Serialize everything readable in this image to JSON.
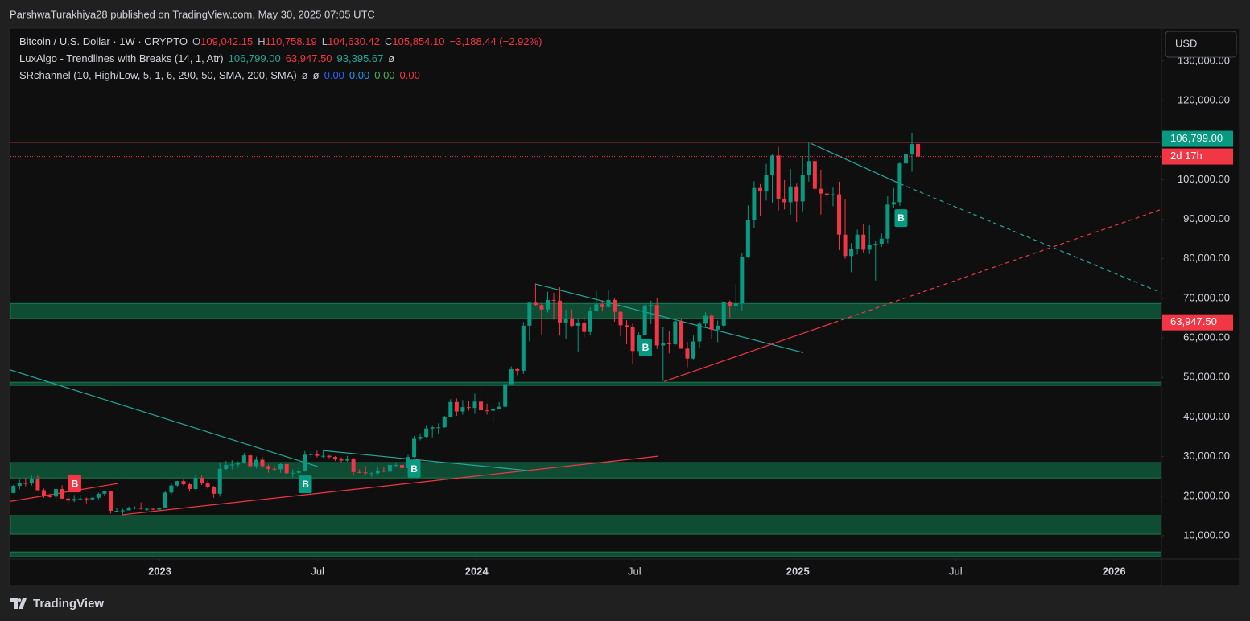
{
  "header": {
    "published": "ParshwaTurakhiya28 published on TradingView.com, May 30, 2025 07:05 UTC",
    "legend": [
      [
        {
          "text": "Bitcoin / U.S. Dollar · 1W · CRYPTO",
          "color": "#d1d4dc"
        },
        {
          "text": "O",
          "color": "#b2b5be"
        },
        {
          "text": "109,042.15",
          "color": "#f23645"
        },
        {
          "text": "H",
          "color": "#b2b5be"
        },
        {
          "text": "110,758.19",
          "color": "#f23645"
        },
        {
          "text": "L",
          "color": "#b2b5be"
        },
        {
          "text": "104,630.42",
          "color": "#f23645"
        },
        {
          "text": "C",
          "color": "#b2b5be"
        },
        {
          "text": "105,854.10",
          "color": "#f23645"
        },
        {
          "text": "−3,188.44 (−2.92%)",
          "color": "#f23645"
        }
      ],
      [
        {
          "text": "LuxAlgo - Trendlines with Breaks (14, 1, Atr)",
          "color": "#d1d4dc"
        },
        {
          "text": "106,799.00",
          "color": "#26a69a"
        },
        {
          "text": "63,947.50",
          "color": "#f23645"
        },
        {
          "text": "93,395.67",
          "color": "#26a69a"
        },
        {
          "text": "ø",
          "color": "#d1d4dc"
        }
      ],
      [
        {
          "text": "SRchannel (10, High/Low, 5, 1, 6, 290, 50, SMA, 200, SMA)",
          "color": "#d1d4dc"
        },
        {
          "text": "ø",
          "color": "#d1d4dc"
        },
        {
          "text": "ø",
          "color": "#d1d4dc"
        },
        {
          "text": "0.00",
          "color": "#2962ff"
        },
        {
          "text": "0.00",
          "color": "#2196f3"
        },
        {
          "text": "0.00",
          "color": "#4caf50"
        },
        {
          "text": "0.00",
          "color": "#f23645"
        }
      ]
    ],
    "currency": "USD",
    "brand": "TradingView"
  },
  "chart_data": {
    "type": "candlestick",
    "up_color": "#089981",
    "down_color": "#f23645",
    "xlim": [
      -0.5,
      189.1
    ],
    "xticks": [
      {
        "value": 24.1,
        "label": "2023"
      },
      {
        "value": 50.1,
        "label": "Jul"
      },
      {
        "value": 76.3,
        "label": "2024"
      },
      {
        "value": 102.3,
        "label": "Jul"
      },
      {
        "value": 129.2,
        "label": "2025"
      },
      {
        "value": 155.2,
        "label": "Jul"
      },
      {
        "value": 181.3,
        "label": "2026"
      }
    ],
    "ylim": [
      -2400,
      138300
    ],
    "yticks": [
      {
        "value": 10000,
        "label": "10,000.00"
      },
      {
        "value": 20000,
        "label": "20,000.00"
      },
      {
        "value": 30000,
        "label": "30,000.00"
      },
      {
        "value": 40000,
        "label": "40,000.00"
      },
      {
        "value": 50000,
        "label": "50,000.00"
      },
      {
        "value": 60000,
        "label": "60,000.00"
      },
      {
        "value": 70000,
        "label": "70,000.00"
      },
      {
        "value": 80000,
        "label": "80,000.00"
      },
      {
        "value": 90000,
        "label": "90,000.00"
      },
      {
        "value": 100000,
        "label": "100,000.00"
      },
      {
        "value": 120000,
        "label": "120,000.00"
      },
      {
        "value": 130000,
        "label": "130,000.00"
      }
    ],
    "grid": false,
    "candles": [
      [
        20800,
        22900,
        20700,
        22600
      ],
      [
        22600,
        24200,
        21700,
        23300
      ],
      [
        23300,
        24600,
        22500,
        23200
      ],
      [
        23200,
        25200,
        22700,
        24400
      ],
      [
        24400,
        25200,
        21300,
        21500
      ],
      [
        21500,
        21900,
        19600,
        20000
      ],
      [
        20000,
        20600,
        19600,
        19900
      ],
      [
        19900,
        22300,
        18500,
        21800
      ],
      [
        21800,
        22700,
        19300,
        19400
      ],
      [
        19400,
        19900,
        18200,
        18900
      ],
      [
        18900,
        20300,
        18500,
        19300
      ],
      [
        19300,
        20400,
        18900,
        19400
      ],
      [
        19400,
        19700,
        18200,
        19200
      ],
      [
        19200,
        19700,
        18900,
        19600
      ],
      [
        19600,
        20900,
        19200,
        20600
      ],
      [
        20600,
        21400,
        20100,
        21300
      ],
      [
        21300,
        21400,
        15600,
        16300
      ],
      [
        16300,
        17100,
        16200,
        16300
      ],
      [
        16300,
        16800,
        15500,
        16400
      ],
      [
        16400,
        17400,
        16400,
        17100
      ],
      [
        17100,
        17400,
        16700,
        17100
      ],
      [
        17100,
        18400,
        16600,
        16800
      ],
      [
        16800,
        17000,
        16300,
        16800
      ],
      [
        16800,
        16900,
        16400,
        16600
      ],
      [
        16600,
        17200,
        16500,
        17100
      ],
      [
        17100,
        21300,
        17100,
        20900
      ],
      [
        20900,
        23300,
        20400,
        22700
      ],
      [
        22700,
        23900,
        22300,
        23800
      ],
      [
        23800,
        24200,
        22700,
        23000
      ],
      [
        23000,
        23400,
        21400,
        21800
      ],
      [
        21800,
        25200,
        21500,
        24600
      ],
      [
        24600,
        25200,
        22800,
        23200
      ],
      [
        23200,
        23900,
        21900,
        22200
      ],
      [
        22200,
        22600,
        19600,
        20600
      ],
      [
        20600,
        28400,
        19900,
        26900
      ],
      [
        26900,
        28900,
        26600,
        27900
      ],
      [
        27900,
        29100,
        26800,
        28000
      ],
      [
        28000,
        28800,
        27200,
        28300
      ],
      [
        28300,
        30900,
        28200,
        30300
      ],
      [
        30300,
        30500,
        27100,
        27600
      ],
      [
        27600,
        30000,
        27000,
        29200
      ],
      [
        29200,
        29900,
        27000,
        27600
      ],
      [
        27600,
        28000,
        25900,
        26900
      ],
      [
        26900,
        27600,
        26500,
        26800
      ],
      [
        26800,
        28400,
        25900,
        28100
      ],
      [
        28100,
        28400,
        25400,
        25800
      ],
      [
        25800,
        26800,
        24800,
        25900
      ],
      [
        25900,
        27000,
        24900,
        26300
      ],
      [
        26300,
        31400,
        26200,
        30500
      ],
      [
        30500,
        31300,
        29600,
        30600
      ],
      [
        30600,
        31500,
        29800,
        30200
      ],
      [
        30200,
        31800,
        29700,
        30200
      ],
      [
        30200,
        30400,
        29600,
        29900
      ],
      [
        29900,
        30100,
        28900,
        29300
      ],
      [
        29300,
        29800,
        28600,
        29000
      ],
      [
        29000,
        30200,
        28700,
        29400
      ],
      [
        29400,
        29700,
        25200,
        26100
      ],
      [
        26100,
        26800,
        25800,
        26000
      ],
      [
        26000,
        27600,
        25400,
        25800
      ],
      [
        25800,
        26100,
        24900,
        25800
      ],
      [
        25800,
        27400,
        25200,
        26500
      ],
      [
        26500,
        27300,
        26000,
        26200
      ],
      [
        26200,
        28500,
        26000,
        27900
      ],
      [
        27900,
        28600,
        27200,
        27900
      ],
      [
        27900,
        28000,
        26600,
        27100
      ],
      [
        27100,
        30400,
        26800,
        29900
      ],
      [
        29900,
        35200,
        29700,
        34500
      ],
      [
        34500,
        35900,
        34100,
        35000
      ],
      [
        35000,
        38000,
        34800,
        37100
      ],
      [
        37100,
        37900,
        34900,
        37400
      ],
      [
        37400,
        38400,
        35600,
        37400
      ],
      [
        37400,
        40300,
        37300,
        39900
      ],
      [
        39900,
        44500,
        39900,
        43800
      ],
      [
        43800,
        44700,
        40300,
        41400
      ],
      [
        41400,
        44300,
        40600,
        42500
      ],
      [
        42500,
        44000,
        41600,
        42300
      ],
      [
        42300,
        45900,
        40800,
        43900
      ],
      [
        43900,
        49100,
        41600,
        41700
      ],
      [
        41700,
        43400,
        40600,
        41600
      ],
      [
        41600,
        42800,
        38500,
        42000
      ],
      [
        42000,
        43800,
        41900,
        42600
      ],
      [
        42600,
        48600,
        42300,
        48300
      ],
      [
        48300,
        52800,
        48300,
        52100
      ],
      [
        52100,
        52500,
        50600,
        51700
      ],
      [
        51700,
        64000,
        50900,
        63100
      ],
      [
        63100,
        69100,
        59100,
        68900
      ],
      [
        68900,
        73800,
        68000,
        68300
      ],
      [
        68300,
        68900,
        60800,
        67200
      ],
      [
        67200,
        71700,
        66400,
        69600
      ],
      [
        69600,
        71400,
        64600,
        69400
      ],
      [
        69400,
        72800,
        60600,
        63900
      ],
      [
        63900,
        67200,
        59800,
        64900
      ],
      [
        64900,
        67200,
        62800,
        63100
      ],
      [
        63100,
        64700,
        56600,
        63900
      ],
      [
        63900,
        65500,
        60200,
        61500
      ],
      [
        61500,
        67700,
        60700,
        66900
      ],
      [
        66900,
        71900,
        66600,
        68500
      ],
      [
        68500,
        69500,
        66700,
        67800
      ],
      [
        67800,
        72000,
        67600,
        69600
      ],
      [
        69600,
        70200,
        64100,
        66600
      ],
      [
        66600,
        66800,
        60400,
        63200
      ],
      [
        63200,
        64500,
        58400,
        62700
      ],
      [
        62700,
        63800,
        53500,
        56700
      ],
      [
        56700,
        61400,
        56600,
        60800
      ],
      [
        60800,
        68400,
        60700,
        68200
      ],
      [
        68200,
        69400,
        63500,
        68300
      ],
      [
        68300,
        70000,
        57200,
        58100
      ],
      [
        58100,
        62700,
        49100,
        58700
      ],
      [
        58700,
        61800,
        56100,
        58400
      ],
      [
        58400,
        65000,
        58000,
        64200
      ],
      [
        64200,
        64900,
        57200,
        57300
      ],
      [
        57300,
        59000,
        52600,
        54800
      ],
      [
        54800,
        60600,
        54600,
        59100
      ],
      [
        59100,
        64100,
        57500,
        63600
      ],
      [
        63600,
        66500,
        62700,
        65600
      ],
      [
        65600,
        66100,
        59800,
        62100
      ],
      [
        62100,
        64400,
        58900,
        63100
      ],
      [
        63100,
        69400,
        62400,
        69000
      ],
      [
        69000,
        69500,
        65100,
        68000
      ],
      [
        68000,
        73600,
        66800,
        68700
      ],
      [
        68700,
        81500,
        66800,
        80400
      ],
      [
        80400,
        93500,
        80200,
        89800
      ],
      [
        89800,
        99600,
        87800,
        97900
      ],
      [
        97900,
        98900,
        90800,
        97000
      ],
      [
        97000,
        104000,
        94700,
        101200
      ],
      [
        101200,
        106500,
        94200,
        106100
      ],
      [
        106100,
        108300,
        92200,
        95200
      ],
      [
        95200,
        99900,
        92500,
        94300
      ],
      [
        94300,
        102700,
        91200,
        98300
      ],
      [
        98300,
        99000,
        89300,
        94500
      ],
      [
        94500,
        106000,
        92000,
        101100
      ],
      [
        101100,
        109600,
        99500,
        104700
      ],
      [
        104700,
        106400,
        97200,
        97700
      ],
      [
        97700,
        102500,
        91200,
        96500
      ],
      [
        96500,
        98500,
        94100,
        96100
      ],
      [
        96100,
        98000,
        93300,
        96300
      ],
      [
        96300,
        99500,
        82200,
        86100
      ],
      [
        86100,
        95000,
        80000,
        80700
      ],
      [
        80700,
        84000,
        76600,
        82600
      ],
      [
        82600,
        87400,
        81100,
        86100
      ],
      [
        86100,
        88700,
        81600,
        82300
      ],
      [
        82300,
        88500,
        81200,
        83500
      ],
      [
        83500,
        84600,
        74500,
        83800
      ],
      [
        83800,
        86400,
        83000,
        85100
      ],
      [
        85100,
        95800,
        83900,
        93700
      ],
      [
        93700,
        97900,
        92800,
        94300
      ],
      [
        94300,
        104300,
        93400,
        104100
      ],
      [
        104100,
        107100,
        100800,
        106500
      ],
      [
        106500,
        111900,
        102000,
        109000
      ],
      [
        109042.15,
        110758.19,
        104630.42,
        105854.1
      ]
    ],
    "zones": [
      [
        64900,
        68700
      ],
      [
        48000,
        48800
      ],
      [
        24600,
        28500
      ],
      [
        10400,
        15100
      ],
      [
        4700,
        5900
      ]
    ],
    "zone_color": "#0e4d34",
    "zone_border": "#1b7a52",
    "hlines": [
      {
        "value": 109400,
        "color": "#7a2e2e"
      }
    ],
    "trendlines": [
      {
        "color": "#26a69a",
        "dashed": false,
        "points": [
          [
            -0.5,
            51900
          ],
          [
            50.1,
            27500
          ]
        ]
      },
      {
        "color": "#f23645",
        "dashed": false,
        "points": [
          [
            -0.5,
            18700
          ],
          [
            17.2,
            23200
          ]
        ]
      },
      {
        "color": "#f23645",
        "dashed": false,
        "points": [
          [
            17.9,
            15300
          ],
          [
            106.2,
            30100
          ]
        ]
      },
      {
        "color": "#26a69a",
        "dashed": false,
        "points": [
          [
            51.1,
            31500
          ],
          [
            84.6,
            26500
          ]
        ]
      },
      {
        "color": "#26a69a",
        "dashed": false,
        "points": [
          [
            86.1,
            73600
          ],
          [
            130.1,
            56300
          ]
        ]
      },
      {
        "color": "#f23645",
        "dashed": false,
        "points": [
          [
            107.2,
            49000
          ],
          [
            135.2,
            63900
          ]
        ]
      },
      {
        "color": "#f23645",
        "dashed": true,
        "points": [
          [
            135.2,
            63900
          ],
          [
            189.1,
            92500
          ]
        ]
      },
      {
        "color": "#26a69a",
        "dashed": false,
        "points": [
          [
            131.3,
            109200
          ],
          [
            146,
            99000
          ]
        ]
      },
      {
        "color": "#26a69a",
        "dashed": true,
        "points": [
          [
            146,
            99000
          ],
          [
            189.1,
            71400
          ]
        ]
      }
    ],
    "breaks": [
      {
        "text": "B",
        "x": 10.1,
        "y": 23200,
        "color": "#f23645"
      },
      {
        "text": "B",
        "x": 48.1,
        "y": 23000,
        "color": "#089981"
      },
      {
        "text": "B",
        "x": 66,
        "y": 26900,
        "color": "#089981"
      },
      {
        "text": "B",
        "x": 104.1,
        "y": 57600,
        "color": "#089981"
      },
      {
        "text": "B",
        "x": 146.2,
        "y": 90300,
        "color": "#089981"
      }
    ],
    "price_labels": [
      {
        "value": 106799,
        "label": "106,799.00",
        "color": "#089981"
      },
      {
        "value": 63947.5,
        "label": "63,947.50",
        "color": "#f23645"
      }
    ],
    "countdown": "2d 17h"
  }
}
